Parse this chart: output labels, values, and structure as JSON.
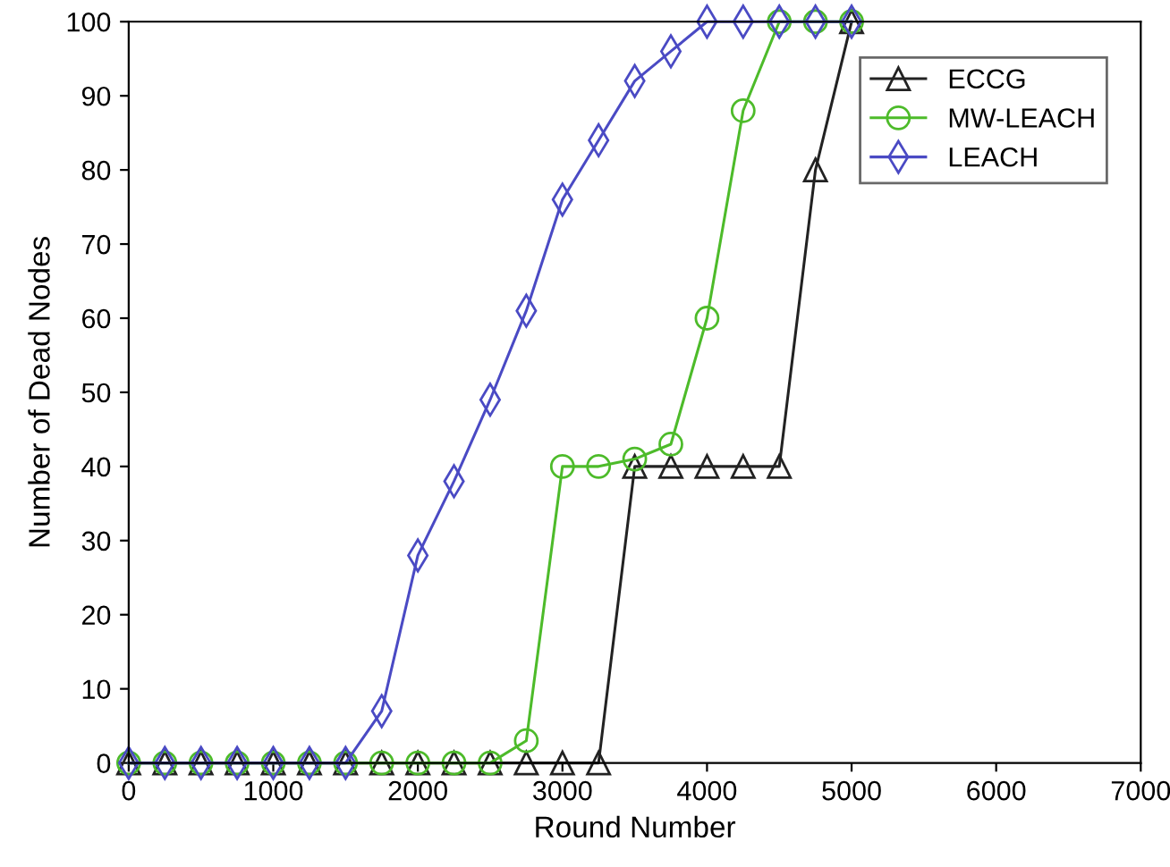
{
  "chart_data": {
    "type": "line",
    "xlabel": "Round Number",
    "ylabel": "Number of Dead Nodes",
    "x": [
      0,
      250,
      500,
      750,
      1000,
      1250,
      1500,
      1750,
      2000,
      2250,
      2500,
      2750,
      3000,
      3250,
      3500,
      3750,
      4000,
      4250,
      4500,
      4750,
      5000
    ],
    "series": [
      {
        "name": "ECCG",
        "color": "#222222",
        "marker": "triangle",
        "values": [
          0,
          0,
          0,
          0,
          0,
          0,
          0,
          0,
          0,
          0,
          0,
          0,
          0,
          0,
          40,
          40,
          40,
          40,
          40,
          80,
          100
        ]
      },
      {
        "name": "MW-LEACH",
        "color": "#4dbb2a",
        "marker": "circle",
        "values": [
          0,
          0,
          0,
          0,
          0,
          0,
          0,
          0,
          0,
          0,
          0,
          3,
          40,
          40,
          41,
          43,
          60,
          88,
          100,
          100,
          100
        ]
      },
      {
        "name": "LEACH",
        "color": "#4a4ac4",
        "marker": "diamond",
        "values": [
          0,
          0,
          0,
          0,
          0,
          0,
          0,
          7,
          28,
          38,
          49,
          61,
          76,
          84,
          92,
          96,
          100,
          100,
          100,
          100,
          100
        ]
      }
    ],
    "xlim": [
      0,
      7000
    ],
    "xticks": [
      0,
      1000,
      2000,
      3000,
      4000,
      5000,
      6000,
      7000
    ],
    "ylim": [
      0,
      100
    ],
    "yticks": [
      0,
      10,
      20,
      30,
      40,
      50,
      60,
      70,
      80,
      90,
      100
    ],
    "grid": false,
    "legend": "top right",
    "line_style": "solid"
  }
}
